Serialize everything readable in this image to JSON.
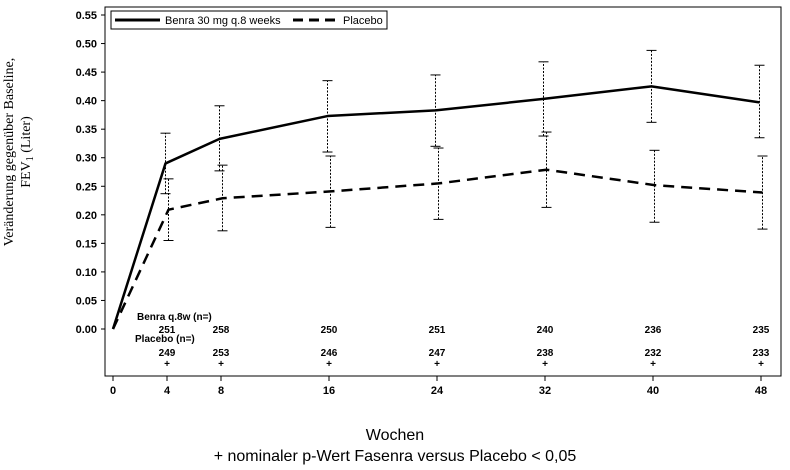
{
  "chart_data": {
    "type": "line",
    "ylabel_line1": "Veränderung gegenüber Baseline,",
    "ylabel_line2_pre": "FEV",
    "ylabel_line2_sub": "1",
    "ylabel_line2_post": " (Liter)",
    "xlabel": "Wochen",
    "footnote": "+ nominaler p-Wert Fasenra versus Placebo < 0,05",
    "x": [
      0,
      4,
      8,
      16,
      24,
      32,
      40,
      48
    ],
    "x_ticks": [
      "0",
      "4",
      "8",
      "16",
      "24",
      "32",
      "40",
      "48"
    ],
    "y_ticks": [
      "0.00",
      "0.05",
      "0.10",
      "0.15",
      "0.20",
      "0.25",
      "0.30",
      "0.35",
      "0.40",
      "0.45",
      "0.50",
      "0.55"
    ],
    "ylim": [
      0,
      0.55
    ],
    "xlim": [
      0,
      48
    ],
    "legend_position": "top-left",
    "series": [
      {
        "name": "Benra 30 mg q.8 weeks",
        "style": "solid",
        "values": [
          0.0,
          0.29,
          0.333,
          0.373,
          0.383,
          0.403,
          0.425,
          0.397
        ],
        "err_low": [
          null,
          0.237,
          0.277,
          0.31,
          0.32,
          0.338,
          0.362,
          0.335
        ],
        "err_high": [
          null,
          0.343,
          0.391,
          0.435,
          0.445,
          0.468,
          0.488,
          0.462
        ]
      },
      {
        "name": "Placebo",
        "style": "dashed",
        "values": [
          0.0,
          0.209,
          0.229,
          0.241,
          0.255,
          0.279,
          0.252,
          0.239
        ],
        "err_low": [
          null,
          0.155,
          0.172,
          0.178,
          0.192,
          0.213,
          0.187,
          0.175
        ],
        "err_high": [
          null,
          0.263,
          0.287,
          0.303,
          0.317,
          0.345,
          0.313,
          0.303
        ]
      }
    ],
    "n_table": {
      "benra_label": "Benra q.8w (n=)",
      "placebo_label": "Placebo (n=)",
      "benra_n": [
        "251",
        "258",
        "250",
        "251",
        "240",
        "236",
        "235"
      ],
      "placebo_n": [
        "249",
        "253",
        "246",
        "247",
        "238",
        "232",
        "233"
      ],
      "n_x": [
        4,
        8,
        16,
        24,
        32,
        40,
        48
      ],
      "significance_marker": "+"
    }
  }
}
